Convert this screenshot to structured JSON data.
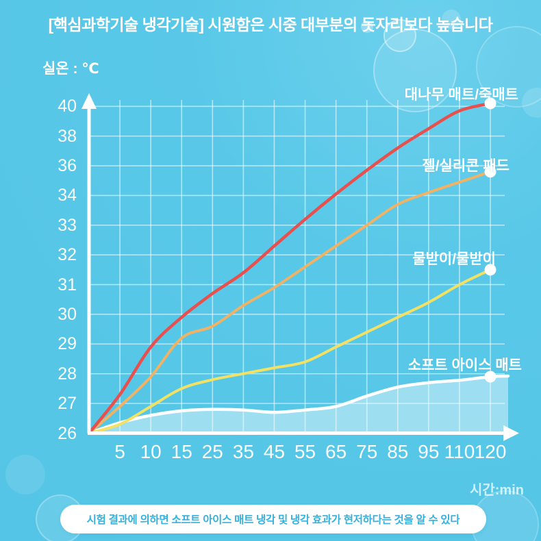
{
  "header": {
    "title": "[핵심과학기술 냉각기술] 시원함은 시중 대부분의 돗자리보다 높습니다"
  },
  "chart_data": {
    "type": "line",
    "title": "",
    "y_axis_title": "실온 : ℃",
    "x_axis_unit": "시간:min",
    "x_ticks": [
      5,
      10,
      15,
      25,
      35,
      45,
      55,
      65,
      75,
      85,
      95,
      110,
      120
    ],
    "y_ticks": [
      26,
      27,
      28,
      29,
      30,
      31,
      32,
      33,
      34,
      36,
      38,
      40
    ],
    "ylim": [
      26,
      40.5
    ],
    "grid": "on",
    "x": [
      0,
      5,
      10,
      15,
      25,
      35,
      45,
      55,
      65,
      75,
      85,
      95,
      110,
      120
    ],
    "series": [
      {
        "name": "대나무 매트/죽매트",
        "color": "#e8504e",
        "values": [
          26,
          27.3,
          28.9,
          29.9,
          30.7,
          31.4,
          32.3,
          33.2,
          34.1,
          35.7,
          37.2,
          38.5,
          39.7,
          40.2
        ]
      },
      {
        "name": "젤/실리콘 패드",
        "color": "#f0b264",
        "values": [
          26,
          26.9,
          27.9,
          29.2,
          29.6,
          30.3,
          30.9,
          31.6,
          32.3,
          33.0,
          33.7,
          34.2,
          34.9,
          35.6
        ]
      },
      {
        "name": "물받이/물받이",
        "color": "#f2e163",
        "values": [
          26,
          26.3,
          26.9,
          27.5,
          27.8,
          28.0,
          28.2,
          28.4,
          28.9,
          29.4,
          29.9,
          30.4,
          31.0,
          31.5
        ]
      },
      {
        "name": "소프트 아이스 매트",
        "color": "#ffffff",
        "fill": "rgba(255,255,255,0.42)",
        "values": [
          26,
          26.35,
          26.6,
          26.75,
          26.8,
          26.78,
          26.7,
          26.78,
          26.9,
          27.25,
          27.55,
          27.7,
          27.78,
          27.9
        ]
      }
    ]
  },
  "footer": {
    "note": "시험 결과에 의하면 소프트 아이스 매트 냉각 및 냉각 효과가 현저하다는 것을 알 수 있다"
  },
  "colors": {
    "background": "#55c6e7",
    "grid": "rgba(255,255,255,0.55)",
    "axis": "#ffffff",
    "footer_text": "#35b1dd"
  }
}
